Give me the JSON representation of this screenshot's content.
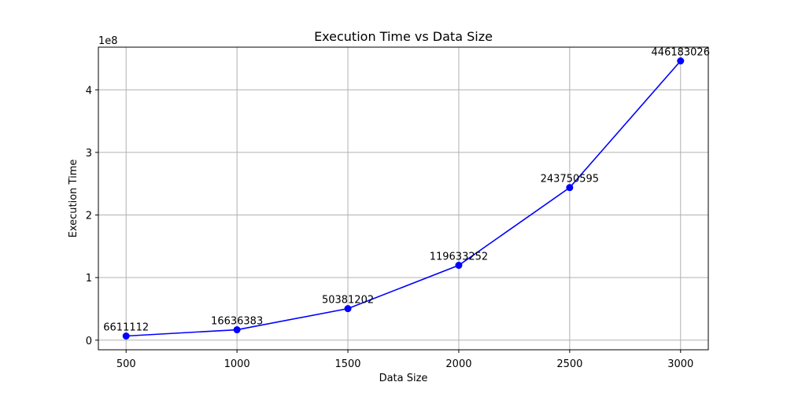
{
  "chart_data": {
    "type": "line",
    "title": "Execution Time vs Data Size",
    "xlabel": "Data Size",
    "ylabel": "Execution Time",
    "y_offset_label": "1e8",
    "x": [
      500,
      1000,
      1500,
      2000,
      2500,
      3000
    ],
    "series": [
      {
        "values": [
          6611112,
          16636383,
          50381202,
          119633252,
          243750595,
          446183026
        ],
        "color": "#0000ff",
        "marker": "circle"
      }
    ],
    "data_labels": [
      "6611112",
      "16636383",
      "50381202",
      "119633252",
      "243750595",
      "446183026"
    ],
    "x_ticks": [
      500,
      1000,
      1500,
      2000,
      2500,
      3000
    ],
    "x_tick_labels": [
      "500",
      "1000",
      "1500",
      "2000",
      "2500",
      "3000"
    ],
    "y_ticks": [
      0,
      100000000,
      200000000,
      300000000,
      400000000
    ],
    "y_tick_labels": [
      "0",
      "1",
      "2",
      "3",
      "4"
    ],
    "xlim": [
      375,
      3125
    ],
    "ylim": [
      -15367483,
      468161621
    ],
    "grid": true
  }
}
